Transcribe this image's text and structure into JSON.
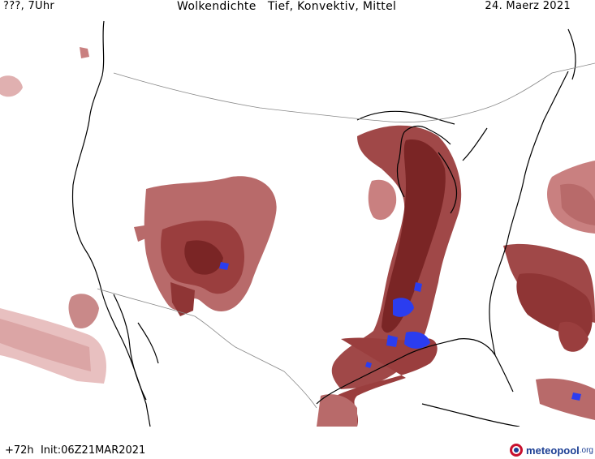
{
  "header": {
    "left": "???, 7Uhr",
    "center": "Wolkendichte   Tief, Konvektiv, Mittel",
    "right": "24. Maerz 2021"
  },
  "footer": {
    "run": "+72h  Init:06Z21MAR2021",
    "brand": "meteopool",
    "brand_suffix": ".org"
  },
  "colors": {
    "cloud_low": "#e6b8b8",
    "cloud_mid": "#c47a7a",
    "cloud_high": "#9a3e3e",
    "cloud_dense": "#7a2525",
    "convective": "#2b3df0",
    "land_outline": "#000000",
    "border_line": "#888888"
  }
}
